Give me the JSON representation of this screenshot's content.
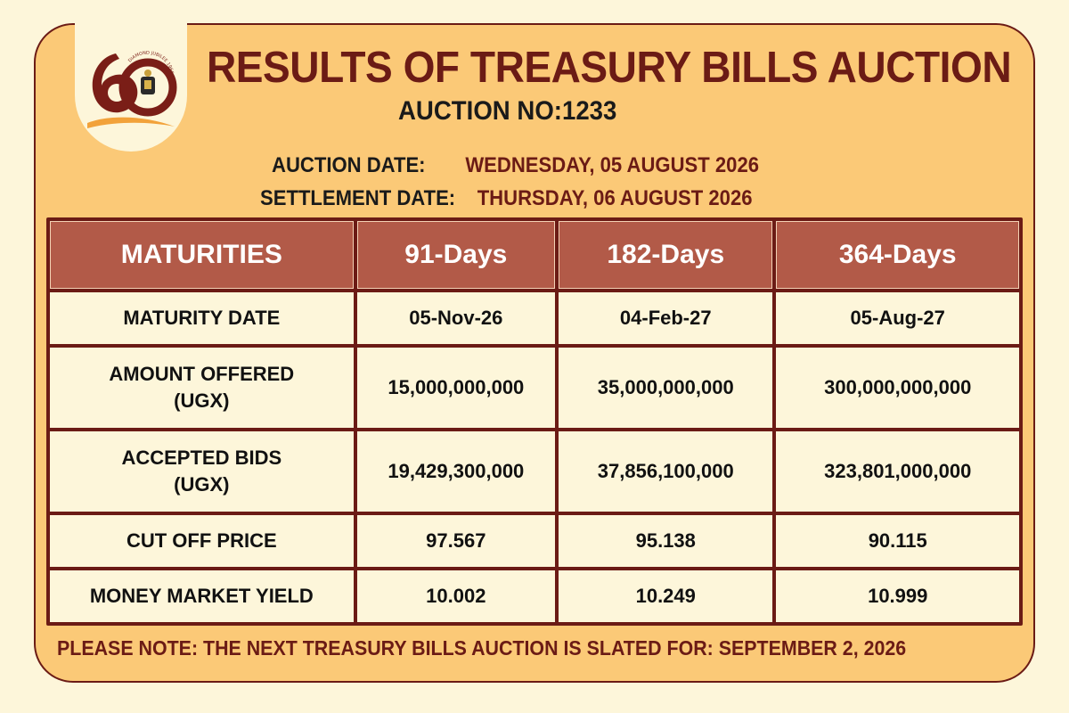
{
  "colors": {
    "background": "#fdf6da",
    "card": "#fbc977",
    "maroon": "#6b1b15",
    "header_cell": "#b25a48",
    "cell": "#fdf6da"
  },
  "logo": {
    "icon": "diamond-jubilee-60-logo",
    "numeral": "60",
    "arc_text": "DIAMOND JUBILEE 1966-2026"
  },
  "header": {
    "title": "RESULTS OF TREASURY BILLS AUCTION",
    "auction_no": "AUCTION NO:1233",
    "auction_date_label": "AUCTION DATE:",
    "auction_date_value": "WEDNESDAY, 05 AUGUST 2026",
    "settlement_date_label": "SETTLEMENT DATE:",
    "settlement_date_value": "THURSDAY, 06 AUGUST 2026"
  },
  "table": {
    "columns": [
      "MATURITIES",
      "91-Days",
      "182-Days",
      "364-Days"
    ],
    "rows": [
      {
        "label": "MATURITY DATE",
        "values": [
          "05-Nov-26",
          "04-Feb-27",
          "05-Aug-27"
        ]
      },
      {
        "label_line1": "AMOUNT OFFERED",
        "label_line2": "(UGX)",
        "values": [
          "15,000,000,000",
          "35,000,000,000",
          "300,000,000,000"
        ]
      },
      {
        "label_line1": "ACCEPTED BIDS",
        "label_line2": "(UGX)",
        "values": [
          "19,429,300,000",
          "37,856,100,000",
          "323,801,000,000"
        ]
      },
      {
        "label": "CUT OFF PRICE",
        "values": [
          "97.567",
          "95.138",
          "90.115"
        ]
      },
      {
        "label": "MONEY MARKET YIELD",
        "values": [
          "10.002",
          "10.249",
          "10.999"
        ]
      }
    ]
  },
  "footer": {
    "note": "PLEASE NOTE: THE NEXT TREASURY BILLS AUCTION IS SLATED FOR: SEPTEMBER 2, 2026"
  }
}
